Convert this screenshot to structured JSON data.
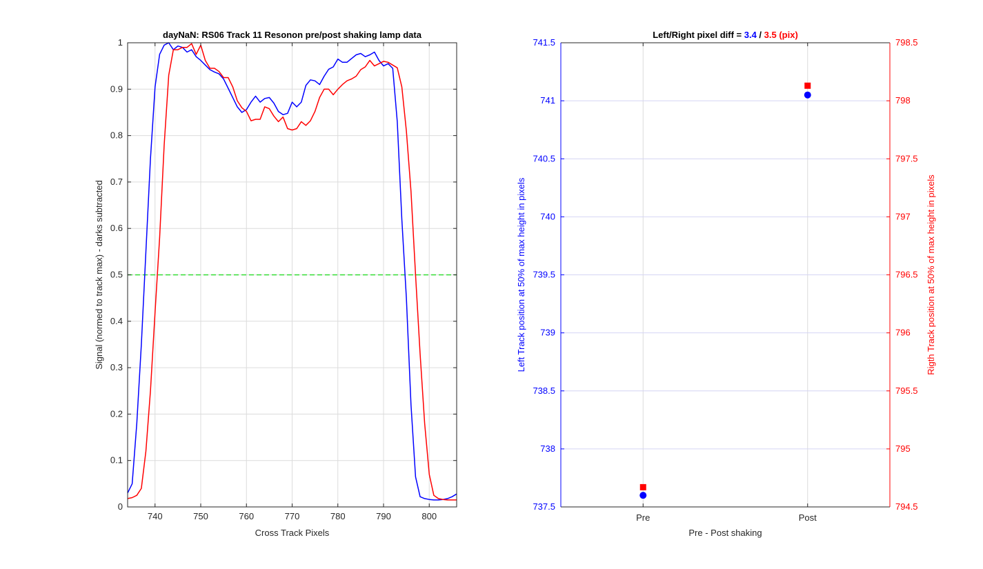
{
  "chart_data": [
    {
      "type": "line",
      "title": "dayNaN: RS06  Track 11 Resonon pre/post shaking lamp data",
      "xlabel": "Cross Track Pixels",
      "ylabel": "Signal (normed to track max) - darks subtracted",
      "xlim": [
        734,
        806
      ],
      "ylim": [
        0,
        1
      ],
      "xticks": [
        740,
        750,
        760,
        770,
        780,
        790,
        800
      ],
      "yticks": [
        0,
        0.1,
        0.2,
        0.3,
        0.4,
        0.5,
        0.6,
        0.7,
        0.8,
        0.9,
        1
      ],
      "grid": true,
      "reference_line": {
        "y": 0.5,
        "color": "#33dd33",
        "style": "dashed"
      },
      "series": [
        {
          "color": "#0000ff",
          "x": [
            734,
            735,
            736,
            737,
            738,
            739,
            740,
            741,
            742,
            743,
            744,
            745,
            746,
            747,
            748,
            749,
            750,
            751,
            752,
            753,
            754,
            755,
            756,
            757,
            758,
            759,
            760,
            761,
            762,
            763,
            764,
            765,
            766,
            767,
            768,
            769,
            770,
            771,
            772,
            773,
            774,
            775,
            776,
            777,
            778,
            779,
            780,
            781,
            782,
            783,
            784,
            785,
            786,
            787,
            788,
            789,
            790,
            791,
            792,
            793,
            794,
            795,
            796,
            797,
            798,
            799,
            800,
            801,
            802,
            803,
            804,
            805,
            806
          ],
          "values": [
            0.03,
            0.05,
            0.18,
            0.35,
            0.55,
            0.75,
            0.905,
            0.975,
            0.995,
            1.0,
            0.985,
            0.993,
            0.99,
            0.98,
            0.985,
            0.97,
            0.962,
            0.952,
            0.942,
            0.937,
            0.933,
            0.922,
            0.902,
            0.882,
            0.862,
            0.85,
            0.856,
            0.872,
            0.885,
            0.872,
            0.88,
            0.882,
            0.87,
            0.852,
            0.845,
            0.848,
            0.872,
            0.862,
            0.872,
            0.908,
            0.92,
            0.918,
            0.91,
            0.928,
            0.943,
            0.948,
            0.965,
            0.958,
            0.958,
            0.966,
            0.974,
            0.977,
            0.97,
            0.974,
            0.98,
            0.962,
            0.95,
            0.955,
            0.945,
            0.83,
            0.62,
            0.45,
            0.22,
            0.065,
            0.022,
            0.018,
            0.016,
            0.015,
            0.015,
            0.016,
            0.018,
            0.022,
            0.028
          ]
        },
        {
          "color": "#ff0000",
          "x": [
            734,
            735,
            736,
            737,
            738,
            739,
            740,
            741,
            742,
            743,
            744,
            745,
            746,
            747,
            748,
            749,
            750,
            751,
            752,
            753,
            754,
            755,
            756,
            757,
            758,
            759,
            760,
            761,
            762,
            763,
            764,
            765,
            766,
            767,
            768,
            769,
            770,
            771,
            772,
            773,
            774,
            775,
            776,
            777,
            778,
            779,
            780,
            781,
            782,
            783,
            784,
            785,
            786,
            787,
            788,
            789,
            790,
            791,
            792,
            793,
            794,
            795,
            796,
            797,
            798,
            799,
            800,
            801,
            802,
            803,
            804,
            805,
            806
          ],
          "values": [
            0.018,
            0.02,
            0.025,
            0.04,
            0.12,
            0.25,
            0.42,
            0.58,
            0.78,
            0.93,
            0.985,
            0.985,
            0.99,
            0.99,
            0.998,
            0.975,
            0.995,
            0.962,
            0.945,
            0.945,
            0.938,
            0.925,
            0.925,
            0.905,
            0.875,
            0.86,
            0.852,
            0.832,
            0.835,
            0.835,
            0.862,
            0.858,
            0.842,
            0.83,
            0.84,
            0.815,
            0.812,
            0.815,
            0.83,
            0.822,
            0.832,
            0.852,
            0.882,
            0.9,
            0.9,
            0.888,
            0.9,
            0.91,
            0.918,
            0.922,
            0.928,
            0.942,
            0.948,
            0.962,
            0.95,
            0.955,
            0.96,
            0.958,
            0.952,
            0.946,
            0.905,
            0.81,
            0.68,
            0.5,
            0.33,
            0.18,
            0.07,
            0.025,
            0.018,
            0.016,
            0.015,
            0.015,
            0.015
          ]
        }
      ]
    },
    {
      "type": "scatter",
      "title_parts": [
        {
          "text": "Left/Right pixel diff = ",
          "color": "#000000"
        },
        {
          "text": "3.4",
          "color": "#0000ff"
        },
        {
          "text": " / ",
          "color": "#000000"
        },
        {
          "text": "3.5 (pix)",
          "color": "#ff0000"
        }
      ],
      "xlabel": "Pre - Post shaking",
      "ylabel_left": "Left Track position at 50% of max height in pixels",
      "ylabel_right": "Rigth Track position at 50% of max height in pixels",
      "categories": [
        "Pre",
        "Post"
      ],
      "ylim_left": [
        737.5,
        741.5
      ],
      "ylim_right": [
        794.5,
        798.5
      ],
      "yticks_left": [
        "737.5",
        "738",
        "738.5",
        "739",
        "739.5",
        "740",
        "740.5",
        "741",
        "741.5"
      ],
      "yticks_right": [
        "794.5",
        "795",
        "795.5",
        "796",
        "796.5",
        "797",
        "797.5",
        "798",
        "798.5"
      ],
      "grid": true,
      "series": [
        {
          "axis": "left",
          "color": "#0000ff",
          "marker": "circle",
          "values": [
            737.6,
            741.05
          ]
        },
        {
          "axis": "right",
          "color": "#ff0000",
          "marker": "square",
          "values": [
            794.67,
            798.13
          ]
        }
      ]
    }
  ]
}
